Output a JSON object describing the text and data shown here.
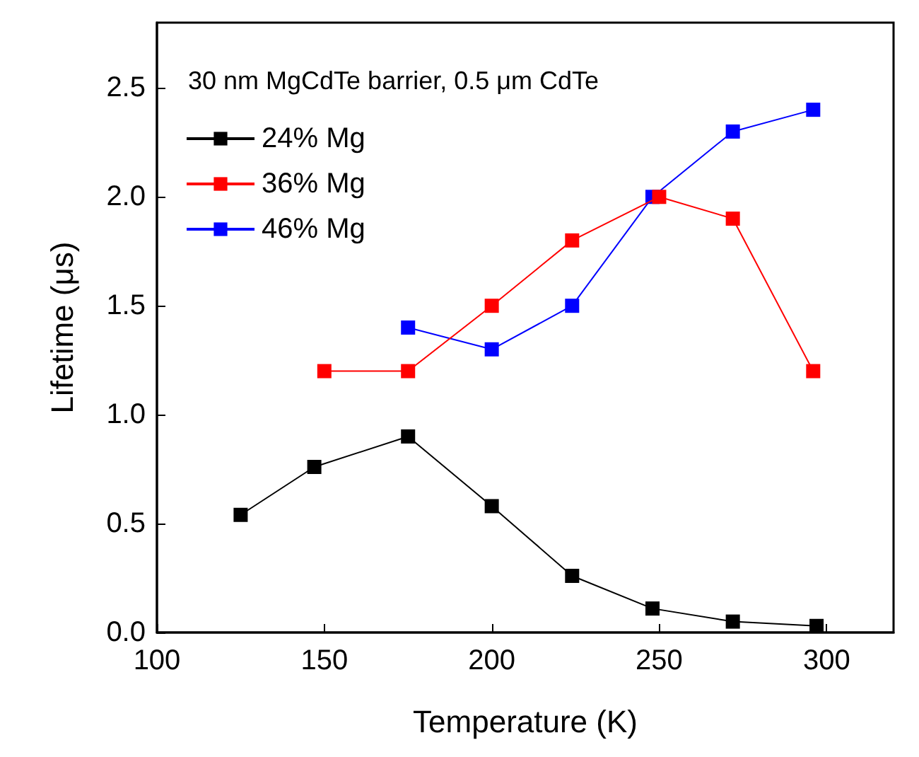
{
  "chart_data": {
    "type": "line",
    "xlabel": "Temperature (K)",
    "ylabel": "Lifetime (μs)",
    "legend_title": "30 nm MgCdTe barrier, 0.5 μm CdTe",
    "xlim": [
      100,
      320
    ],
    "xticks": [
      100,
      150,
      200,
      250,
      300
    ],
    "ylim": [
      0,
      2.8
    ],
    "yticks": [
      "0.0",
      0.5,
      "1.0",
      1.5,
      "2.0",
      2.5
    ],
    "legend": "top left",
    "grid": false,
    "marker": "square",
    "line_style": "solid",
    "series": [
      {
        "name": "24% Mg",
        "color": "#000000",
        "x": [
          125,
          147,
          175,
          200,
          224,
          248,
          272,
          297
        ],
        "values": [
          0.54,
          0.76,
          0.9,
          0.58,
          0.26,
          0.11,
          0.05,
          0.03
        ]
      },
      {
        "name": "36% Mg",
        "color": "#ff0000",
        "x": [
          150,
          175,
          200,
          224,
          250,
          272,
          296
        ],
        "values": [
          1.2,
          1.2,
          1.5,
          1.8,
          2.0,
          1.9,
          1.2
        ]
      },
      {
        "name": "46% Mg",
        "color": "#0000ff",
        "x": [
          175,
          200,
          224,
          248,
          272,
          296
        ],
        "values": [
          1.4,
          1.3,
          1.5,
          2.0,
          2.3,
          2.4
        ]
      }
    ]
  }
}
